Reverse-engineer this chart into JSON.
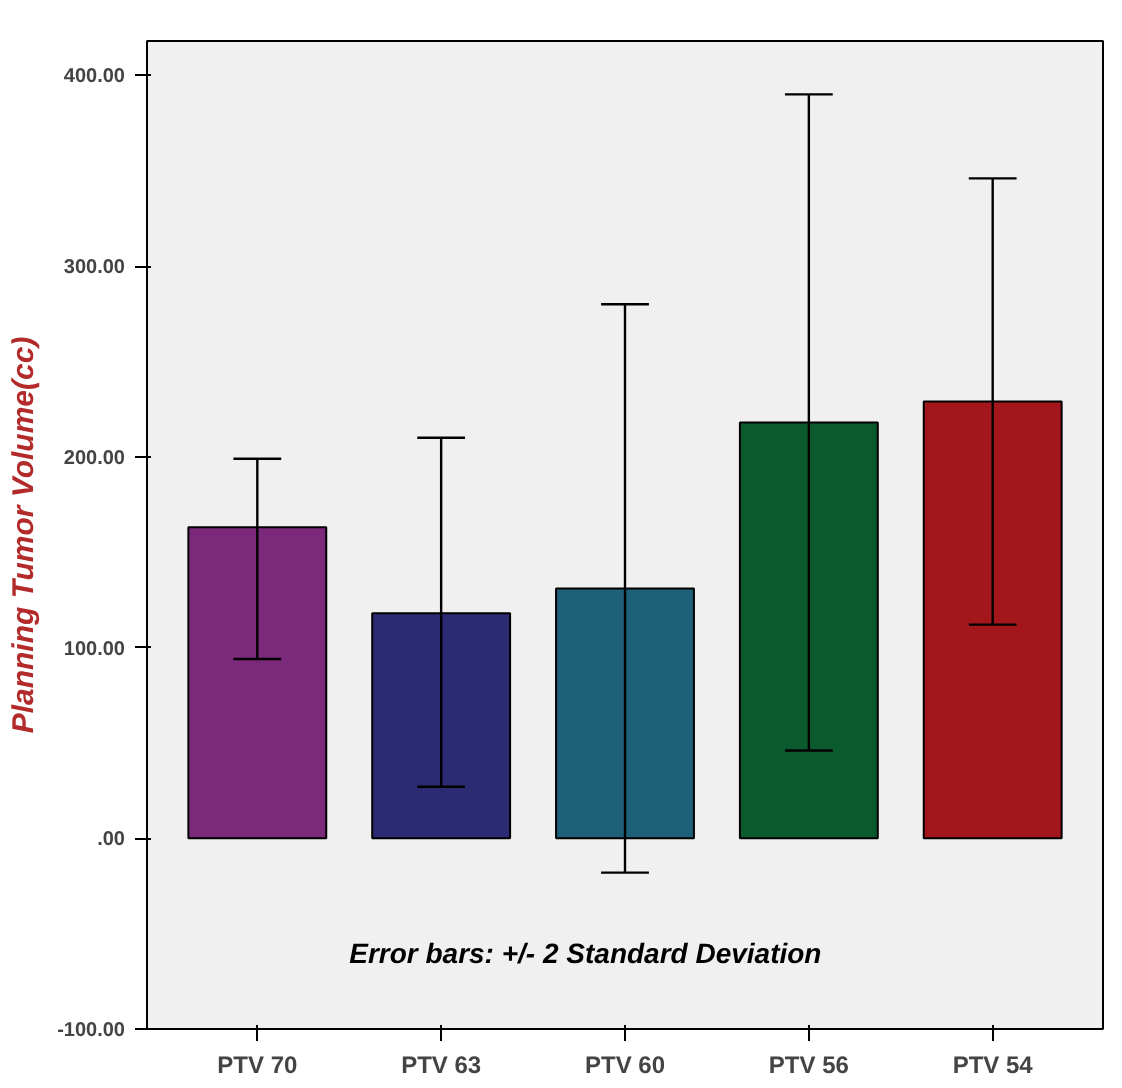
{
  "chart_data": {
    "type": "bar",
    "ylabel": "Planning Tumor Volume(cc)",
    "categories": [
      "PTV 70",
      "PTV 63",
      "PTV 60",
      "PTV 56",
      "PTV 54"
    ],
    "values": [
      163,
      118,
      131,
      218,
      229
    ],
    "colors": [
      "#7b2a7b",
      "#2b2a73",
      "#1d6077",
      "#0b5a2e",
      "#a3161b"
    ],
    "errors": [
      [
        94,
        199
      ],
      [
        27,
        210
      ],
      [
        -18,
        280
      ],
      [
        46,
        390
      ],
      [
        112,
        346
      ]
    ],
    "ylim": [
      -100,
      418
    ],
    "yticks": [
      {
        "value": -100,
        "label": "-100.00"
      },
      {
        "value": 0,
        "label": ".00"
      },
      {
        "value": 100,
        "label": "100.00"
      },
      {
        "value": 200,
        "label": "200.00"
      },
      {
        "value": 300,
        "label": "300.00"
      },
      {
        "value": 400,
        "label": "400.00"
      }
    ],
    "grid": false,
    "annotations": [
      "Error bars: +/-  2 Standard Deviation"
    ]
  }
}
